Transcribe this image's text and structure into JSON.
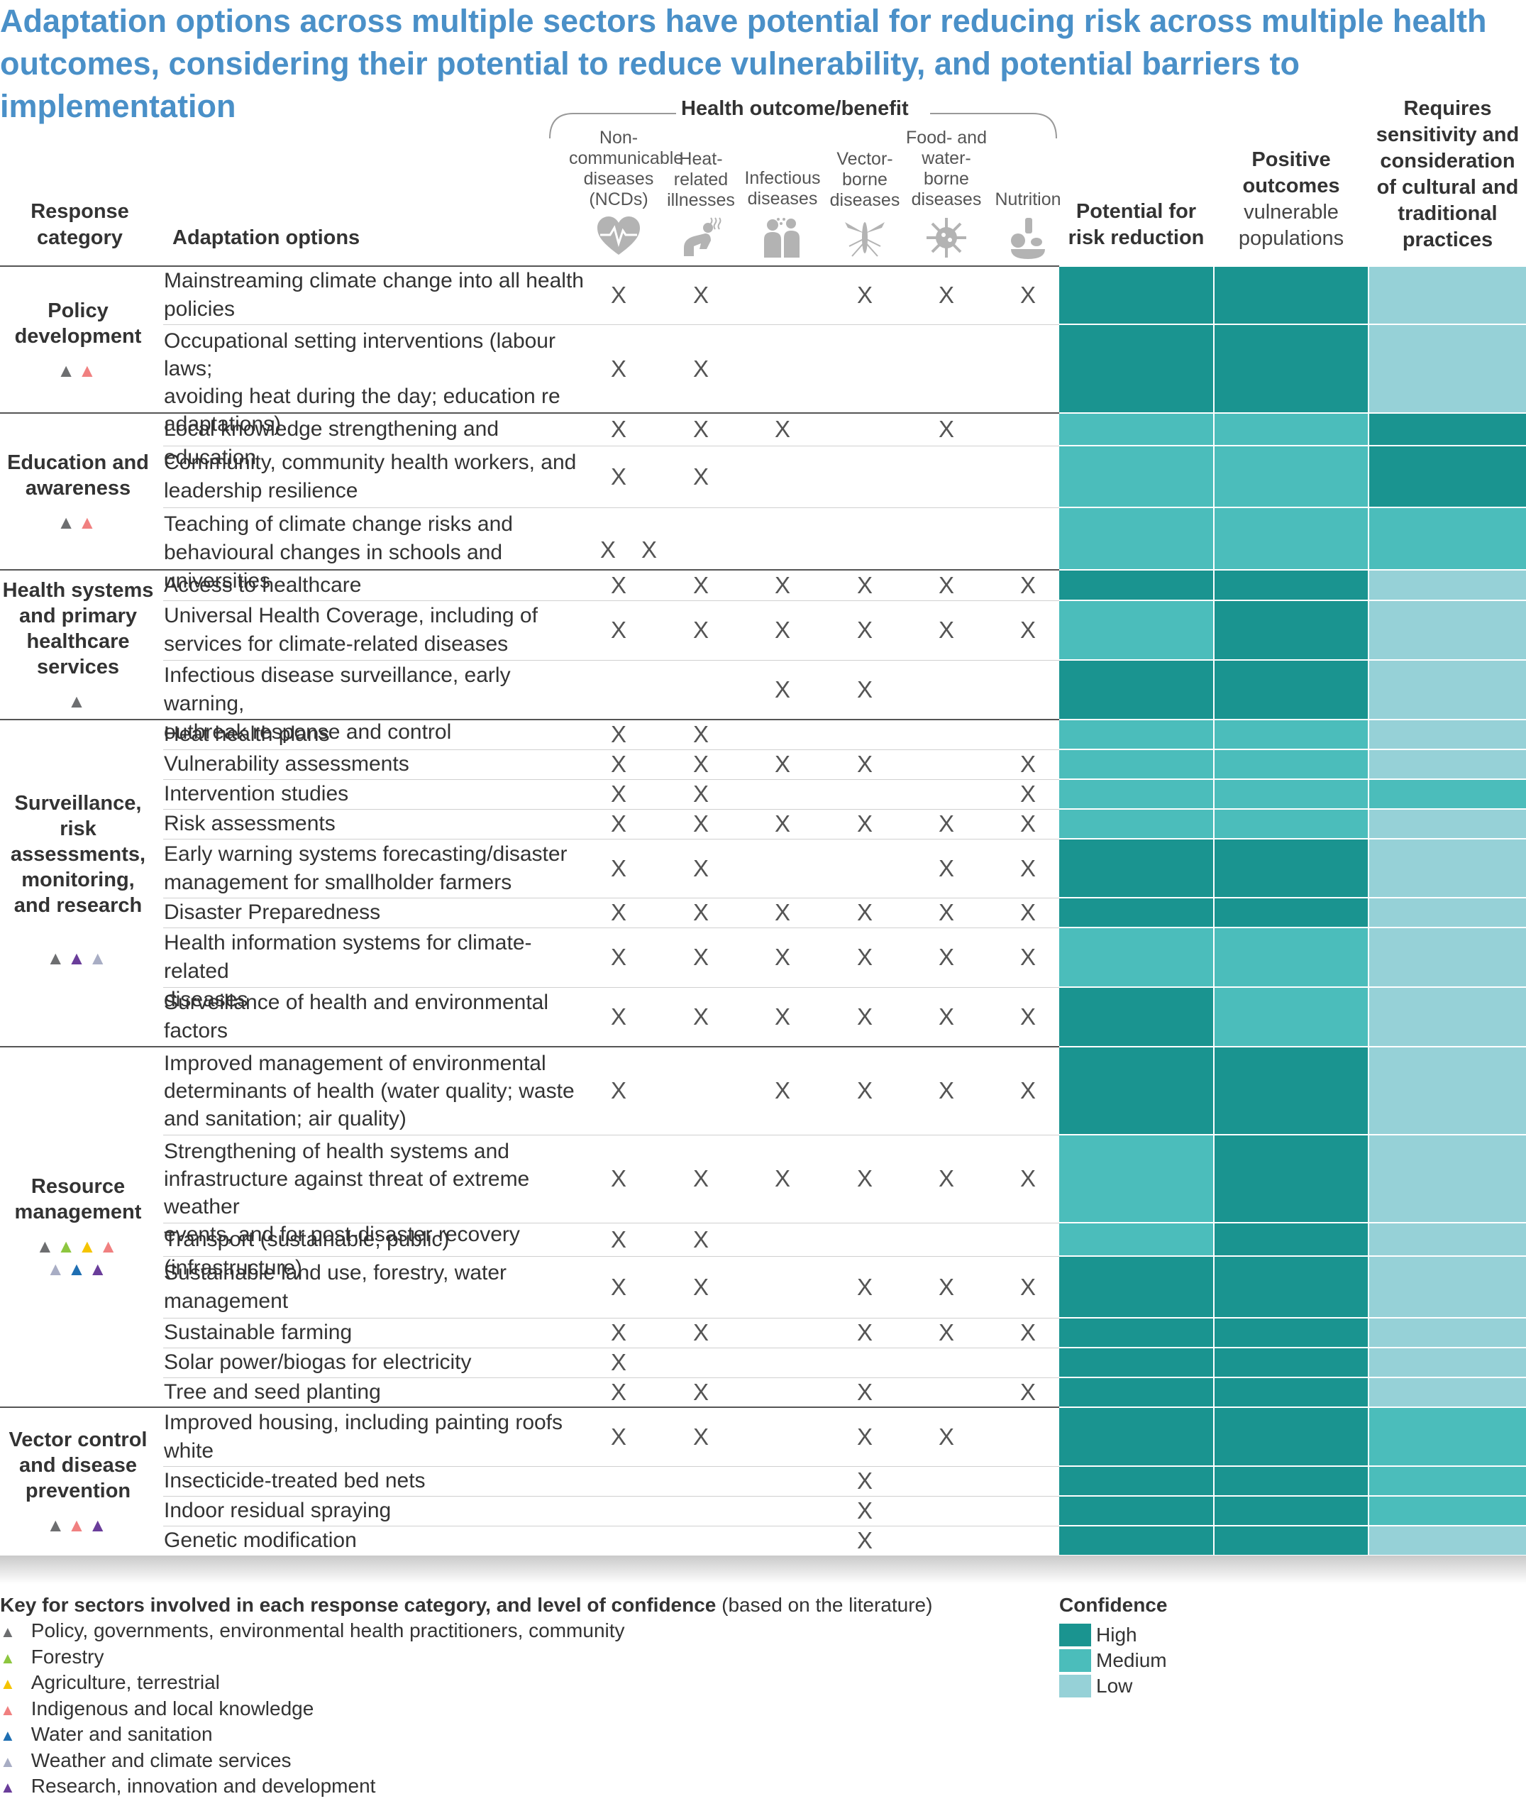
{
  "title": "Adaptation options across multiple sectors have potential for reducing risk across multiple health outcomes, considering their potential to reduce vulnerability, and potential barriers to implementation",
  "headers": {
    "response_category": [
      "Response",
      "category"
    ],
    "adaptation_options": "Adaptation options",
    "health_outcome": "Health outcome/benefit",
    "outcomes": [
      {
        "label": [
          "Non-",
          "communicable",
          "diseases",
          "(NCDs)"
        ],
        "icon": "heart-rate-icon"
      },
      {
        "label": [
          "Heat-",
          "related",
          "illnesses"
        ],
        "icon": "heat-illness-icon"
      },
      {
        "label": [
          "Infectious",
          "diseases"
        ],
        "icon": "infectious-icon"
      },
      {
        "label": [
          "Vector-",
          "borne",
          "diseases"
        ],
        "icon": "mosquito-icon"
      },
      {
        "label": [
          "Food- and",
          "water-",
          "borne",
          "diseases"
        ],
        "icon": "germ-icon"
      },
      {
        "label": [
          "Nutrition"
        ],
        "icon": "nutrition-icon"
      }
    ],
    "potential": [
      "Potential for",
      "risk reduction"
    ],
    "positive": [
      "Positive",
      "outcomes",
      "vulnerable",
      "populations"
    ],
    "requires": [
      "Requires",
      "sensitivity and",
      "consideration",
      "of cultural and",
      "traditional",
      "practices"
    ]
  },
  "colors": {
    "High": "#1a9490",
    "Medium": "#4bbdbb",
    "Low": "#96d1d7",
    "title": "#4a90c8"
  },
  "groups": [
    {
      "category": [
        "Policy",
        "development"
      ],
      "triangles": [
        [
          "#6d6e70",
          "#f08080"
        ]
      ],
      "rows": [
        {
          "option": [
            "Mainstreaming climate change into all health",
            "policies"
          ],
          "x": [
            1,
            1,
            0,
            1,
            1,
            1
          ],
          "levels": [
            "High",
            "High",
            "Low"
          ]
        },
        {
          "option": [
            "Occupational setting interventions (labour laws;",
            "avoiding heat during the day; education re",
            "adaptations)"
          ],
          "x": [
            1,
            1,
            0,
            0,
            0,
            0
          ],
          "levels": [
            "High",
            "High",
            "Low"
          ]
        }
      ]
    },
    {
      "category": [
        "Education and",
        "awareness"
      ],
      "triangles": [
        [
          "#6d6e70",
          "#f08080"
        ]
      ],
      "rows": [
        {
          "option": [
            "Local knowledge strengthening and education"
          ],
          "x": [
            1,
            1,
            1,
            0,
            1,
            0
          ],
          "levels": [
            "Medium",
            "Medium",
            "High"
          ]
        },
        {
          "option": [
            "Community, community health workers, and",
            "leadership resilience"
          ],
          "x": [
            1,
            1,
            0,
            0,
            0,
            0
          ],
          "levels": [
            "Medium",
            "Medium",
            "High"
          ]
        },
        {
          "option": [
            "Teaching of climate change risks and",
            "behavioural changes in schools and universities"
          ],
          "x": [
            1,
            1,
            0,
            0,
            0,
            0
          ],
          "levels": [
            "Medium",
            "Medium",
            "Medium"
          ],
          "xshift": true
        }
      ]
    },
    {
      "category": [
        "Health systems",
        "and primary",
        "healthcare",
        "services"
      ],
      "triangles": [
        [
          "#6d6e70"
        ]
      ],
      "rows": [
        {
          "option": [
            "Access to healthcare"
          ],
          "x": [
            1,
            1,
            1,
            1,
            1,
            1
          ],
          "levels": [
            "High",
            "High",
            "Low"
          ]
        },
        {
          "option": [
            "Universal Health Coverage, including of",
            "services for climate-related diseases"
          ],
          "x": [
            1,
            1,
            1,
            1,
            1,
            1
          ],
          "levels": [
            "Medium",
            "High",
            "Low"
          ]
        },
        {
          "option": [
            "Infectious disease surveillance, early warning,",
            "outbreak response and control"
          ],
          "x": [
            0,
            0,
            1,
            1,
            0,
            0
          ],
          "levels": [
            "High",
            "High",
            "Low"
          ]
        }
      ]
    },
    {
      "category": [
        "Surveillance,",
        "risk",
        "assessments,",
        "monitoring,",
        "and research"
      ],
      "triangles": [
        [
          "#6d6e70",
          "#6a3d9a",
          "#a8adc4"
        ]
      ],
      "rows": [
        {
          "option": [
            "Heat health plans"
          ],
          "x": [
            1,
            1,
            0,
            0,
            0,
            0
          ],
          "levels": [
            "Medium",
            "Medium",
            "Low"
          ]
        },
        {
          "option": [
            "Vulnerability assessments"
          ],
          "x": [
            1,
            1,
            1,
            1,
            0,
            1
          ],
          "levels": [
            "Medium",
            "Medium",
            "Low"
          ]
        },
        {
          "option": [
            "Intervention studies"
          ],
          "x": [
            1,
            1,
            0,
            0,
            0,
            1
          ],
          "levels": [
            "Medium",
            "Medium",
            "Medium"
          ]
        },
        {
          "option": [
            "Risk assessments"
          ],
          "x": [
            1,
            1,
            1,
            1,
            1,
            1
          ],
          "levels": [
            "Medium",
            "Medium",
            "Low"
          ]
        },
        {
          "option": [
            "Early warning systems forecasting/disaster",
            "management for smallholder farmers"
          ],
          "x": [
            1,
            1,
            0,
            0,
            1,
            1
          ],
          "levels": [
            "High",
            "High",
            "Low"
          ]
        },
        {
          "option": [
            "Disaster Preparedness"
          ],
          "x": [
            1,
            1,
            1,
            1,
            1,
            1
          ],
          "levels": [
            "High",
            "High",
            "Low"
          ]
        },
        {
          "option": [
            "Health information systems for climate-related",
            "diseases"
          ],
          "x": [
            1,
            1,
            1,
            1,
            1,
            1
          ],
          "levels": [
            "Medium",
            "Medium",
            "Low"
          ]
        },
        {
          "option": [
            "Surveillance of health and environmental",
            "factors"
          ],
          "x": [
            1,
            1,
            1,
            1,
            1,
            1
          ],
          "levels": [
            "High",
            "Medium",
            "Low"
          ]
        }
      ]
    },
    {
      "category": [
        "Resource",
        "management"
      ],
      "triangles": [
        [
          "#6d6e70",
          "#8dc63f",
          "#f5c400",
          "#f08080"
        ],
        [
          "#a8adc4",
          "#1f6fb2",
          "#6a3d9a"
        ]
      ],
      "rows": [
        {
          "option": [
            "Improved management of environmental",
            "determinants of health (water quality; waste",
            "and sanitation; air quality)"
          ],
          "x": [
            1,
            0,
            1,
            1,
            1,
            1
          ],
          "levels": [
            "High",
            "High",
            "Low"
          ]
        },
        {
          "option": [
            "Strengthening of health systems and",
            "infrastructure against threat of extreme weather",
            "events, and for post-disaster recovery"
          ],
          "x": [
            1,
            1,
            1,
            1,
            1,
            1
          ],
          "levels": [
            "Medium",
            "High",
            "Low"
          ]
        },
        {
          "option": [
            "Transport (sustainable; public) (infrastructure)"
          ],
          "x": [
            1,
            1,
            0,
            0,
            0,
            0
          ],
          "levels": [
            "Medium",
            "High",
            "Low"
          ]
        },
        {
          "option": [
            "Sustainable land use, forestry, water",
            "management"
          ],
          "x": [
            1,
            1,
            0,
            1,
            1,
            1
          ],
          "levels": [
            "High",
            "High",
            "Low"
          ]
        },
        {
          "option": [
            "Sustainable farming"
          ],
          "x": [
            1,
            1,
            0,
            1,
            1,
            1
          ],
          "levels": [
            "High",
            "High",
            "Low"
          ]
        },
        {
          "option": [
            "Solar power/biogas for electricity"
          ],
          "x": [
            1,
            0,
            0,
            0,
            0,
            0
          ],
          "levels": [
            "High",
            "High",
            "Low"
          ]
        },
        {
          "option": [
            "Tree and seed planting"
          ],
          "x": [
            1,
            1,
            0,
            1,
            0,
            1
          ],
          "levels": [
            "High",
            "High",
            "Low"
          ]
        }
      ]
    },
    {
      "category": [
        "Vector control",
        "and disease",
        "prevention"
      ],
      "triangles": [
        [
          "#6d6e70",
          "#f08080",
          "#6a3d9a"
        ]
      ],
      "rows": [
        {
          "option": [
            "Improved housing, including painting roofs",
            "white"
          ],
          "x": [
            1,
            1,
            0,
            1,
            1,
            0
          ],
          "levels": [
            "High",
            "High",
            "Medium"
          ]
        },
        {
          "option": [
            "Insecticide-treated bed nets"
          ],
          "x": [
            0,
            0,
            0,
            1,
            0,
            0
          ],
          "levels": [
            "High",
            "High",
            "Medium"
          ]
        },
        {
          "option": [
            "Indoor residual spraying"
          ],
          "x": [
            0,
            0,
            0,
            1,
            0,
            0
          ],
          "levels": [
            "High",
            "High",
            "Medium"
          ]
        },
        {
          "option": [
            "Genetic modification"
          ],
          "x": [
            0,
            0,
            0,
            1,
            0,
            0
          ],
          "levels": [
            "High",
            "High",
            "Low"
          ]
        }
      ]
    }
  ],
  "key": {
    "heading_bold": "Key for sectors involved in each response category, and level of confidence",
    "heading_normal": "(based on the literature)",
    "items": [
      {
        "label": "Policy, governments, environmental health practitioners, community",
        "color": "#6d6e70"
      },
      {
        "label": "Forestry",
        "color": "#8dc63f"
      },
      {
        "label": "Agriculture, terrestrial",
        "color": "#f5c400"
      },
      {
        "label": "Indigenous and local knowledge",
        "color": "#f08080"
      },
      {
        "label": "Water and sanitation",
        "color": "#1f6fb2"
      },
      {
        "label": "Weather and climate services",
        "color": "#a8adc4"
      },
      {
        "label": "Research, innovation and development",
        "color": "#6a3d9a"
      }
    ],
    "confidence_title": "Confidence",
    "confidence": [
      "High",
      "Medium",
      "Low"
    ]
  }
}
